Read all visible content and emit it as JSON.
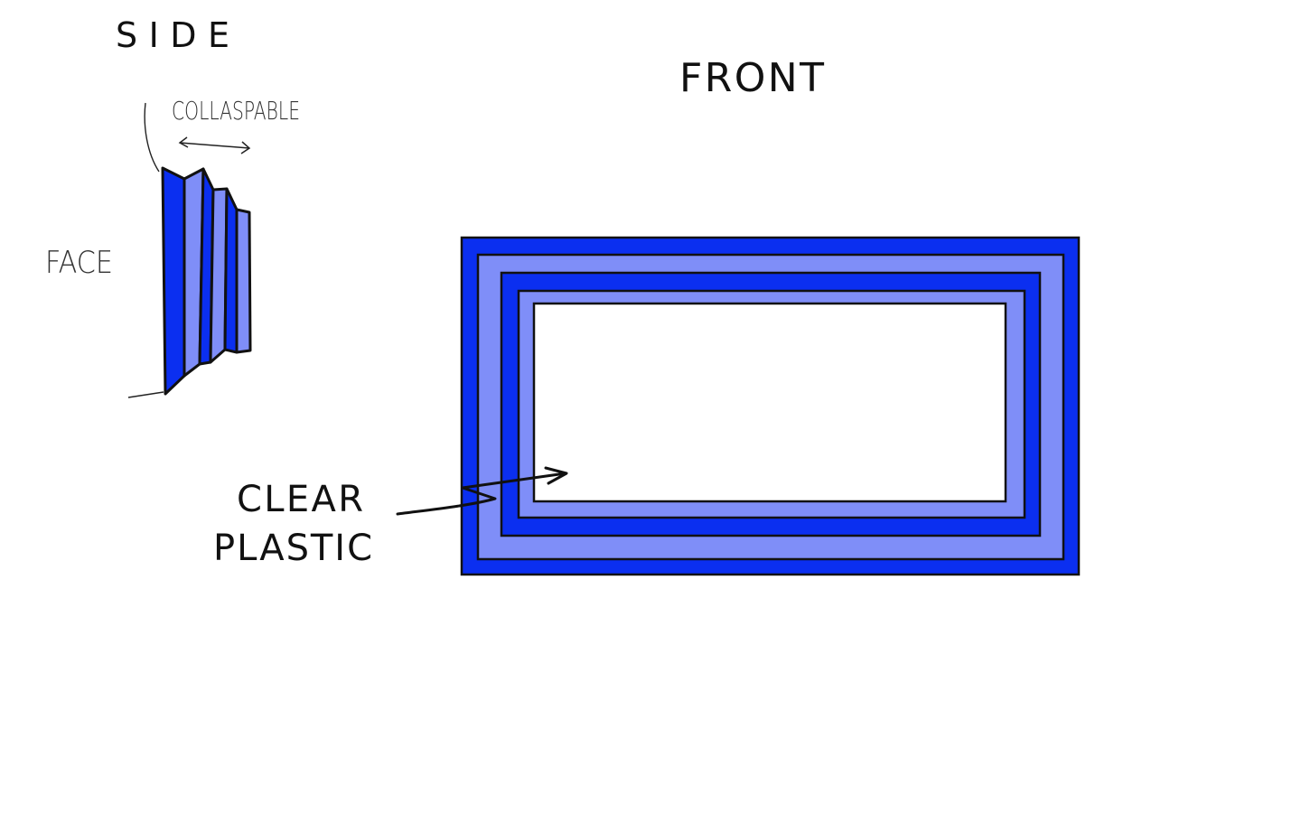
{
  "labels": {
    "side": "SIDE",
    "front": "FRONT",
    "collapsable": "COLLASPABLE",
    "face": "FACE",
    "clear_line1": "CLEAR",
    "clear_line2": "PLASTIC"
  },
  "colors": {
    "dark_blue": "#0b2ff0",
    "light_blue": "#7f8ef8",
    "outline": "#111111",
    "window": "#ffffff"
  }
}
